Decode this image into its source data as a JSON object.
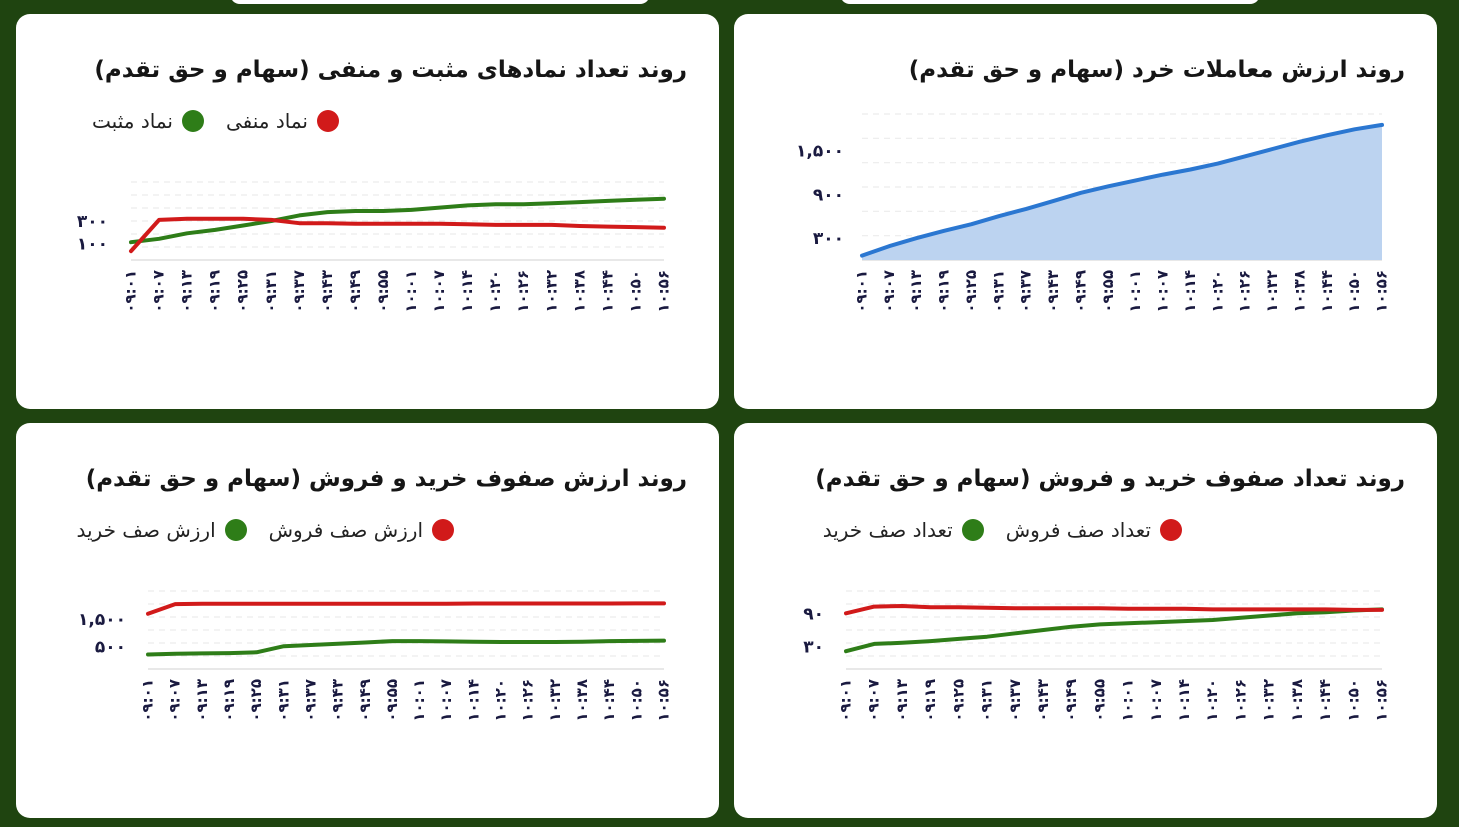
{
  "chart_data": [
    {
      "type": "area",
      "title": "روند ارزش معاملات خرد (سهام و حق تقدم)",
      "xlabel": "",
      "ylabel": "",
      "grid": true,
      "x": [
        "۰۹:۰۱",
        "۰۹:۰۷",
        "۰۹:۱۳",
        "۰۹:۱۹",
        "۰۹:۲۵",
        "۰۹:۳۱",
        "۰۹:۳۷",
        "۰۹:۴۳",
        "۰۹:۴۹",
        "۰۹:۵۵",
        "۱۰:۰۱",
        "۱۰:۰۷",
        "۱۰:۱۴",
        "۱۰:۲۰",
        "۱۰:۲۶",
        "۱۰:۳۲",
        "۱۰:۳۸",
        "۱۰:۴۴",
        "۱۰:۵۰",
        "۱۰:۵۶"
      ],
      "yticks": [
        {
          "value": 300,
          "label": "۳۰۰"
        },
        {
          "value": 900,
          "label": "۹۰۰"
        },
        {
          "value": 1500,
          "label": "۱,۵۰۰"
        }
      ],
      "ylim": [
        0,
        2000
      ],
      "series": [
        {
          "color": "#2b77d1",
          "fill": "#bcd3f0",
          "values": [
            60,
            190,
            300,
            400,
            490,
            600,
            700,
            810,
            920,
            1010,
            1090,
            1170,
            1240,
            1320,
            1420,
            1520,
            1620,
            1710,
            1790,
            1850
          ]
        }
      ]
    },
    {
      "type": "line",
      "title": "روند تعداد نمادهای مثبت و منفی (سهام و حق تقدم)",
      "xlabel": "",
      "ylabel": "",
      "grid": true,
      "x": [
        "۰۹:۰۱",
        "۰۹:۰۷",
        "۰۹:۱۳",
        "۰۹:۱۹",
        "۰۹:۲۵",
        "۰۹:۳۱",
        "۰۹:۳۷",
        "۰۹:۴۳",
        "۰۹:۴۹",
        "۰۹:۵۵",
        "۱۰:۰۱",
        "۱۰:۰۷",
        "۱۰:۱۴",
        "۱۰:۲۰",
        "۱۰:۲۶",
        "۱۰:۳۲",
        "۱۰:۳۸",
        "۱۰:۴۴",
        "۱۰:۵۰",
        "۱۰:۵۶"
      ],
      "yticks": [
        {
          "value": 100,
          "label": "۱۰۰"
        },
        {
          "value": 300,
          "label": "۳۰۰"
        }
      ],
      "ylim": [
        -50,
        650
      ],
      "series": [
        {
          "name": "نماد مثبت",
          "color": "#2e7d18",
          "values": [
            110,
            140,
            190,
            220,
            260,
            300,
            350,
            380,
            390,
            390,
            400,
            420,
            440,
            450,
            450,
            460,
            470,
            480,
            490,
            500
          ]
        },
        {
          "name": "نماد منفی",
          "color": "#d11a1a",
          "values": [
            30,
            310,
            320,
            320,
            320,
            310,
            280,
            280,
            275,
            275,
            275,
            275,
            270,
            265,
            265,
            265,
            255,
            250,
            245,
            240
          ]
        }
      ]
    },
    {
      "type": "line",
      "title": "روند تعداد صفوف خرید و فروش (سهام و حق تقدم)",
      "xlabel": "",
      "ylabel": "",
      "grid": true,
      "x": [
        "۰۹:۰۱",
        "۰۹:۰۷",
        "۰۹:۱۳",
        "۰۹:۱۹",
        "۰۹:۲۵",
        "۰۹:۳۱",
        "۰۹:۳۷",
        "۰۹:۴۳",
        "۰۹:۴۹",
        "۰۹:۵۵",
        "۱۰:۰۱",
        "۱۰:۰۷",
        "۱۰:۱۴",
        "۱۰:۲۰",
        "۱۰:۲۶",
        "۱۰:۳۲",
        "۱۰:۳۸",
        "۱۰:۴۴",
        "۱۰:۵۰",
        "۱۰:۵۶"
      ],
      "yticks": [
        {
          "value": 30,
          "label": "۳۰"
        },
        {
          "value": 90,
          "label": "۹۰"
        }
      ],
      "ylim": [
        -10,
        130
      ],
      "series": [
        {
          "name": "تعداد صف خرید",
          "color": "#2e7d18",
          "values": [
            22,
            35,
            37,
            40,
            44,
            48,
            54,
            60,
            66,
            70,
            72,
            74,
            76,
            78,
            82,
            86,
            90,
            92,
            95,
            97
          ]
        },
        {
          "name": "تعداد صف فروش",
          "color": "#d11a1a",
          "values": [
            90,
            102,
            103,
            101,
            101,
            100,
            99,
            99,
            99,
            99,
            98,
            98,
            98,
            97,
            97,
            97,
            97,
            97,
            96,
            96
          ]
        }
      ]
    },
    {
      "type": "line",
      "title": "روند ارزش صفوف خرید و فروش (سهام و حق تقدم)",
      "xlabel": "",
      "ylabel": "",
      "grid": true,
      "x": [
        "۰۹:۰۱",
        "۰۹:۰۷",
        "۰۹:۱۳",
        "۰۹:۱۹",
        "۰۹:۲۵",
        "۰۹:۳۱",
        "۰۹:۳۷",
        "۰۹:۴۳",
        "۰۹:۴۹",
        "۰۹:۵۵",
        "۱۰:۰۱",
        "۱۰:۰۷",
        "۱۰:۱۴",
        "۱۰:۲۰",
        "۱۰:۲۶",
        "۱۰:۳۲",
        "۱۰:۳۸",
        "۱۰:۴۴",
        "۱۰:۵۰",
        "۱۰:۵۶"
      ],
      "yticks": [
        {
          "value": 500,
          "label": "۵۰۰"
        },
        {
          "value": 1500,
          "label": "۱,۵۰۰"
        }
      ],
      "ylim": [
        -300,
        2500
      ],
      "series": [
        {
          "name": "ارزش صف خرید",
          "color": "#2e7d18",
          "values": [
            220,
            250,
            260,
            270,
            300,
            520,
            560,
            610,
            650,
            700,
            700,
            690,
            680,
            670,
            670,
            670,
            680,
            700,
            710,
            720
          ]
        },
        {
          "name": "ارزش صف فروش",
          "color": "#d11a1a",
          "values": [
            1680,
            2030,
            2040,
            2040,
            2045,
            2045,
            2045,
            2045,
            2045,
            2045,
            2045,
            2045,
            2050,
            2050,
            2050,
            2050,
            2050,
            2050,
            2055,
            2055
          ]
        }
      ]
    }
  ]
}
